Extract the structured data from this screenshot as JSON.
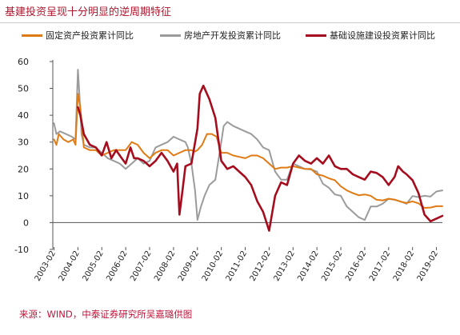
{
  "title": "基建投资呈现十分明显的逆周期特征",
  "source": "来源：WIND，中泰证券研究所吴嘉璐供图",
  "colors": {
    "fixed_asset": "#e07b14",
    "real_estate": "#9b9b9b",
    "infrastructure": "#a50d1e",
    "title": "#b0142c",
    "source": "#c4123a"
  },
  "chart_data": {
    "type": "line",
    "ylim": [
      -10,
      60
    ],
    "yticks": [
      -10,
      0,
      10,
      20,
      30,
      40,
      50,
      60
    ],
    "xlim": [
      2003.0,
      2019.25
    ],
    "xtick_labels": [
      "2003-02",
      "2004-02",
      "2005-02",
      "2006-02",
      "2007-02",
      "2008-02",
      "2009-02",
      "2010-02",
      "2011-02",
      "2012-02",
      "2013-02",
      "2014-02",
      "2015-02",
      "2016-02",
      "2017-02",
      "2018-02",
      "2019-02"
    ],
    "xtick_values": [
      2003.0,
      2004.0,
      2005.0,
      2006.0,
      2007.0,
      2008.0,
      2009.0,
      2010.0,
      2011.0,
      2012.0,
      2013.0,
      2014.0,
      2015.0,
      2016.0,
      2017.0,
      2018.0,
      2019.0
    ],
    "grid": false,
    "legend_position": "top",
    "series": [
      {
        "name": "固定资产投资累计同比",
        "color": "#e07b14",
        "points": [
          [
            2003.0,
            31
          ],
          [
            2003.1,
            29
          ],
          [
            2003.2,
            33
          ],
          [
            2003.4,
            31
          ],
          [
            2003.6,
            30
          ],
          [
            2003.8,
            31
          ],
          [
            2003.9,
            29
          ],
          [
            2004.0,
            48
          ],
          [
            2004.1,
            43
          ],
          [
            2004.25,
            28
          ],
          [
            2004.5,
            27
          ],
          [
            2004.75,
            27
          ],
          [
            2005.0,
            25
          ],
          [
            2005.25,
            26
          ],
          [
            2005.5,
            27
          ],
          [
            2005.75,
            27
          ],
          [
            2006.0,
            27
          ],
          [
            2006.25,
            30
          ],
          [
            2006.5,
            29
          ],
          [
            2006.75,
            26
          ],
          [
            2007.0,
            24
          ],
          [
            2007.25,
            26
          ],
          [
            2007.5,
            27
          ],
          [
            2007.75,
            27
          ],
          [
            2008.0,
            25
          ],
          [
            2008.25,
            26
          ],
          [
            2008.5,
            27
          ],
          [
            2008.75,
            27
          ],
          [
            2008.9,
            26.5
          ],
          [
            2009.0,
            27
          ],
          [
            2009.2,
            29
          ],
          [
            2009.4,
            33
          ],
          [
            2009.6,
            33
          ],
          [
            2009.8,
            32
          ],
          [
            2010.0,
            26
          ],
          [
            2010.25,
            26
          ],
          [
            2010.5,
            25
          ],
          [
            2010.75,
            24.5
          ],
          [
            2011.0,
            24
          ],
          [
            2011.25,
            25
          ],
          [
            2011.5,
            25
          ],
          [
            2011.75,
            24
          ],
          [
            2012.0,
            22
          ],
          [
            2012.25,
            20
          ],
          [
            2012.5,
            20.5
          ],
          [
            2012.75,
            20.5
          ],
          [
            2013.0,
            21
          ],
          [
            2013.25,
            20.5
          ],
          [
            2013.5,
            20
          ],
          [
            2013.75,
            20
          ],
          [
            2014.0,
            18
          ],
          [
            2014.25,
            17.5
          ],
          [
            2014.5,
            16.5
          ],
          [
            2014.75,
            15.8
          ],
          [
            2015.0,
            13.5
          ],
          [
            2015.25,
            12
          ],
          [
            2015.5,
            11
          ],
          [
            2015.75,
            10.2
          ],
          [
            2016.0,
            10.5
          ],
          [
            2016.25,
            10
          ],
          [
            2016.5,
            8.5
          ],
          [
            2016.75,
            8.3
          ],
          [
            2017.0,
            8.9
          ],
          [
            2017.25,
            8.6
          ],
          [
            2017.5,
            7.8
          ],
          [
            2017.75,
            7.3
          ],
          [
            2018.0,
            7.9
          ],
          [
            2018.25,
            7.2
          ],
          [
            2018.5,
            5.5
          ],
          [
            2018.75,
            5.6
          ],
          [
            2019.0,
            6.1
          ],
          [
            2019.25,
            6.1
          ]
        ]
      },
      {
        "name": "房地产开发投资累计同比",
        "color": "#9b9b9b",
        "points": [
          [
            2003.0,
            37
          ],
          [
            2003.1,
            33
          ],
          [
            2003.25,
            34
          ],
          [
            2003.5,
            33
          ],
          [
            2003.75,
            32
          ],
          [
            2003.9,
            31
          ],
          [
            2004.0,
            57
          ],
          [
            2004.06,
            48
          ],
          [
            2004.15,
            33
          ],
          [
            2004.25,
            29
          ],
          [
            2004.5,
            28
          ],
          [
            2004.75,
            28
          ],
          [
            2005.0,
            26
          ],
          [
            2005.25,
            24
          ],
          [
            2005.5,
            23
          ],
          [
            2005.75,
            22
          ],
          [
            2006.0,
            20
          ],
          [
            2006.25,
            22
          ],
          [
            2006.5,
            24
          ],
          [
            2006.75,
            22
          ],
          [
            2007.0,
            23
          ],
          [
            2007.25,
            28
          ],
          [
            2007.5,
            29
          ],
          [
            2007.75,
            30
          ],
          [
            2008.0,
            32
          ],
          [
            2008.25,
            31
          ],
          [
            2008.5,
            30
          ],
          [
            2008.6,
            28
          ],
          [
            2008.75,
            22
          ],
          [
            2008.9,
            12
          ],
          [
            2009.0,
            1
          ],
          [
            2009.15,
            6
          ],
          [
            2009.3,
            10
          ],
          [
            2009.5,
            14
          ],
          [
            2009.75,
            16
          ],
          [
            2010.0,
            30
          ],
          [
            2010.1,
            36
          ],
          [
            2010.25,
            37.5
          ],
          [
            2010.5,
            36
          ],
          [
            2010.75,
            35
          ],
          [
            2011.0,
            34
          ],
          [
            2011.25,
            33
          ],
          [
            2011.5,
            31
          ],
          [
            2011.75,
            28
          ],
          [
            2012.0,
            27
          ],
          [
            2012.25,
            19
          ],
          [
            2012.5,
            16
          ],
          [
            2012.75,
            16
          ],
          [
            2013.0,
            22
          ],
          [
            2013.25,
            21
          ],
          [
            2013.5,
            20
          ],
          [
            2013.75,
            19.8
          ],
          [
            2014.0,
            19
          ],
          [
            2014.25,
            14.5
          ],
          [
            2014.5,
            13
          ],
          [
            2014.75,
            10.5
          ],
          [
            2015.0,
            10
          ],
          [
            2015.25,
            6
          ],
          [
            2015.5,
            4
          ],
          [
            2015.75,
            2
          ],
          [
            2016.0,
            1
          ],
          [
            2016.25,
            6
          ],
          [
            2016.5,
            6
          ],
          [
            2016.75,
            7
          ],
          [
            2017.0,
            8.9
          ],
          [
            2017.25,
            8.5
          ],
          [
            2017.5,
            7.9
          ],
          [
            2017.75,
            7
          ],
          [
            2018.0,
            9.9
          ],
          [
            2018.25,
            9.5
          ],
          [
            2018.5,
            10
          ],
          [
            2018.75,
            9.7
          ],
          [
            2019.0,
            11.6
          ],
          [
            2019.25,
            12
          ]
        ]
      },
      {
        "name": "基础设施建设投资累计同比",
        "color": "#a50d1e",
        "points": [
          [
            2004.0,
            43
          ],
          [
            2004.1,
            40
          ],
          [
            2004.25,
            33
          ],
          [
            2004.5,
            29
          ],
          [
            2004.75,
            28
          ],
          [
            2005.0,
            25
          ],
          [
            2005.2,
            30
          ],
          [
            2005.4,
            24
          ],
          [
            2005.6,
            27
          ],
          [
            2005.75,
            25
          ],
          [
            2006.0,
            22
          ],
          [
            2006.2,
            28
          ],
          [
            2006.35,
            24
          ],
          [
            2006.5,
            24
          ],
          [
            2006.75,
            23
          ],
          [
            2007.0,
            21
          ],
          [
            2007.25,
            23
          ],
          [
            2007.5,
            26
          ],
          [
            2007.75,
            23
          ],
          [
            2008.0,
            19
          ],
          [
            2008.15,
            22
          ],
          [
            2008.25,
            3
          ],
          [
            2008.35,
            10
          ],
          [
            2008.5,
            21
          ],
          [
            2008.75,
            22
          ],
          [
            2009.0,
            35
          ],
          [
            2009.1,
            48
          ],
          [
            2009.25,
            51
          ],
          [
            2009.5,
            46
          ],
          [
            2009.75,
            39
          ],
          [
            2010.0,
            23
          ],
          [
            2010.25,
            20
          ],
          [
            2010.5,
            21
          ],
          [
            2010.75,
            19
          ],
          [
            2011.0,
            17
          ],
          [
            2011.25,
            14
          ],
          [
            2011.5,
            8
          ],
          [
            2011.75,
            4
          ],
          [
            2012.0,
            -3
          ],
          [
            2012.25,
            10
          ],
          [
            2012.5,
            15
          ],
          [
            2012.75,
            14
          ],
          [
            2013.0,
            22
          ],
          [
            2013.25,
            25
          ],
          [
            2013.5,
            23
          ],
          [
            2013.75,
            22
          ],
          [
            2014.0,
            24
          ],
          [
            2014.25,
            22
          ],
          [
            2014.5,
            25
          ],
          [
            2014.75,
            21
          ],
          [
            2015.0,
            20
          ],
          [
            2015.25,
            20
          ],
          [
            2015.5,
            18
          ],
          [
            2015.75,
            17
          ],
          [
            2016.0,
            16
          ],
          [
            2016.25,
            19
          ],
          [
            2016.5,
            18.5
          ],
          [
            2016.75,
            17
          ],
          [
            2017.0,
            14
          ],
          [
            2017.25,
            17
          ],
          [
            2017.4,
            21
          ],
          [
            2017.6,
            19
          ],
          [
            2017.75,
            18
          ],
          [
            2018.0,
            15.8
          ],
          [
            2018.25,
            11
          ],
          [
            2018.5,
            3
          ],
          [
            2018.75,
            0.5
          ],
          [
            2019.0,
            1.5
          ],
          [
            2019.25,
            2.5
          ]
        ]
      }
    ]
  }
}
